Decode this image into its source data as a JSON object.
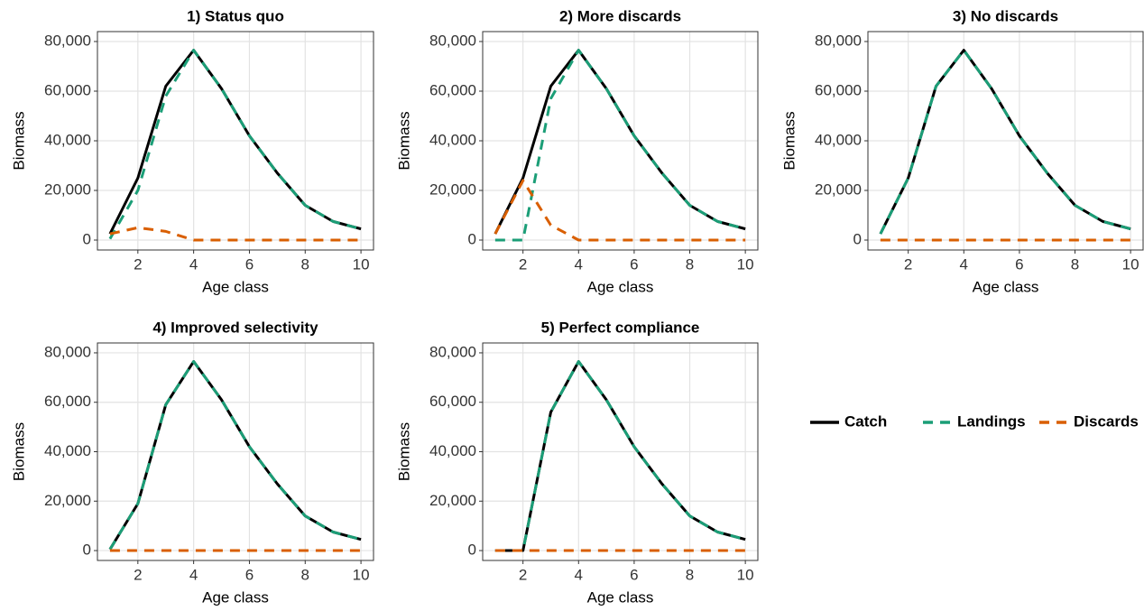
{
  "chart_data": [
    {
      "type": "line",
      "title": "1) Status quo",
      "xlabel": "Age class",
      "ylabel": "Biomass",
      "x": [
        1,
        2,
        3,
        4,
        5,
        6,
        7,
        8,
        9,
        10
      ],
      "xlim": [
        0.55,
        10.45
      ],
      "xticks": [
        2,
        4,
        6,
        8,
        10
      ],
      "ylim": [
        -4000,
        84000
      ],
      "yticks": [
        0,
        {
          "value": 20000,
          "label": "20,000"
        },
        {
          "value": 40000,
          "label": "40,000"
        },
        {
          "value": 60000,
          "label": "60,000"
        },
        {
          "value": 80000,
          "label": "80,000"
        }
      ],
      "grid": true,
      "series": [
        {
          "name": "Catch",
          "color": "#000000",
          "dashed": false,
          "values": [
            2500,
            25000,
            62000,
            76500,
            61000,
            42000,
            27000,
            14000,
            7500,
            4500
          ]
        },
        {
          "name": "Landings",
          "color": "#1b9e77",
          "dashed": true,
          "values": [
            500,
            20000,
            58000,
            76500,
            61000,
            42000,
            27000,
            14000,
            7500,
            4500
          ]
        },
        {
          "name": "Discards",
          "color": "#d95f02",
          "dashed": true,
          "values": [
            2500,
            5000,
            3500,
            0,
            0,
            0,
            0,
            0,
            0,
            0
          ]
        }
      ]
    },
    {
      "type": "line",
      "title": "2) More discards",
      "xlabel": "Age class",
      "ylabel": "Biomass",
      "x": [
        1,
        2,
        3,
        4,
        5,
        6,
        7,
        8,
        9,
        10
      ],
      "xlim": [
        0.55,
        10.45
      ],
      "xticks": [
        2,
        4,
        6,
        8,
        10
      ],
      "ylim": [
        -4000,
        84000
      ],
      "yticks": [
        0,
        {
          "value": 20000,
          "label": "20,000"
        },
        {
          "value": 40000,
          "label": "40,000"
        },
        {
          "value": 60000,
          "label": "60,000"
        },
        {
          "value": 80000,
          "label": "80,000"
        }
      ],
      "grid": true,
      "series": [
        {
          "name": "Catch",
          "color": "#000000",
          "dashed": false,
          "values": [
            2500,
            25000,
            62000,
            76500,
            61000,
            42000,
            27000,
            14000,
            7500,
            4500
          ]
        },
        {
          "name": "Landings",
          "color": "#1b9e77",
          "dashed": true,
          "values": [
            0,
            0,
            57000,
            76500,
            61000,
            42000,
            27000,
            14000,
            7500,
            4500
          ]
        },
        {
          "name": "Discards",
          "color": "#d95f02",
          "dashed": true,
          "values": [
            2500,
            24000,
            6000,
            0,
            0,
            0,
            0,
            0,
            0,
            0
          ]
        }
      ]
    },
    {
      "type": "line",
      "title": "3) No discards",
      "xlabel": "Age class",
      "ylabel": "Biomass",
      "x": [
        1,
        2,
        3,
        4,
        5,
        6,
        7,
        8,
        9,
        10
      ],
      "xlim": [
        0.55,
        10.45
      ],
      "xticks": [
        2,
        4,
        6,
        8,
        10
      ],
      "ylim": [
        -4000,
        84000
      ],
      "yticks": [
        0,
        {
          "value": 20000,
          "label": "20,000"
        },
        {
          "value": 40000,
          "label": "40,000"
        },
        {
          "value": 60000,
          "label": "60,000"
        },
        {
          "value": 80000,
          "label": "80,000"
        }
      ],
      "grid": true,
      "series": [
        {
          "name": "Catch",
          "color": "#000000",
          "dashed": false,
          "values": [
            2500,
            25000,
            62000,
            76500,
            61000,
            42000,
            27000,
            14000,
            7500,
            4500
          ]
        },
        {
          "name": "Landings",
          "color": "#1b9e77",
          "dashed": true,
          "values": [
            2500,
            25000,
            62000,
            76500,
            61000,
            42000,
            27000,
            14000,
            7500,
            4500
          ]
        },
        {
          "name": "Discards",
          "color": "#d95f02",
          "dashed": true,
          "values": [
            0,
            0,
            0,
            0,
            0,
            0,
            0,
            0,
            0,
            0
          ]
        }
      ]
    },
    {
      "type": "line",
      "title": "4) Improved selectivity",
      "xlabel": "Age class",
      "ylabel": "Biomass",
      "x": [
        1,
        2,
        3,
        4,
        5,
        6,
        7,
        8,
        9,
        10
      ],
      "xlim": [
        0.55,
        10.45
      ],
      "xticks": [
        2,
        4,
        6,
        8,
        10
      ],
      "ylim": [
        -4000,
        84000
      ],
      "yticks": [
        0,
        {
          "value": 20000,
          "label": "20,000"
        },
        {
          "value": 40000,
          "label": "40,000"
        },
        {
          "value": 60000,
          "label": "60,000"
        },
        {
          "value": 80000,
          "label": "80,000"
        }
      ],
      "grid": true,
      "series": [
        {
          "name": "Catch",
          "color": "#000000",
          "dashed": false,
          "values": [
            500,
            19000,
            59000,
            76500,
            61000,
            42000,
            27000,
            14000,
            7500,
            4500
          ]
        },
        {
          "name": "Landings",
          "color": "#1b9e77",
          "dashed": true,
          "values": [
            500,
            19000,
            59000,
            76500,
            61000,
            42000,
            27000,
            14000,
            7500,
            4500
          ]
        },
        {
          "name": "Discards",
          "color": "#d95f02",
          "dashed": true,
          "values": [
            0,
            0,
            0,
            0,
            0,
            0,
            0,
            0,
            0,
            0
          ]
        }
      ]
    },
    {
      "type": "line",
      "title": "5) Perfect compliance",
      "xlabel": "Age class",
      "ylabel": "Biomass",
      "x": [
        1,
        2,
        3,
        4,
        5,
        6,
        7,
        8,
        9,
        10
      ],
      "xlim": [
        0.55,
        10.45
      ],
      "xticks": [
        2,
        4,
        6,
        8,
        10
      ],
      "ylim": [
        -4000,
        84000
      ],
      "yticks": [
        0,
        {
          "value": 20000,
          "label": "20,000"
        },
        {
          "value": 40000,
          "label": "40,000"
        },
        {
          "value": 60000,
          "label": "60,000"
        },
        {
          "value": 80000,
          "label": "80,000"
        }
      ],
      "grid": true,
      "series": [
        {
          "name": "Catch",
          "color": "#000000",
          "dashed": false,
          "values": [
            0,
            0,
            56000,
            76500,
            61000,
            42000,
            27000,
            14000,
            7500,
            4500
          ]
        },
        {
          "name": "Landings",
          "color": "#1b9e77",
          "dashed": true,
          "values": [
            0,
            0,
            56000,
            76500,
            61000,
            42000,
            27000,
            14000,
            7500,
            4500
          ]
        },
        {
          "name": "Discards",
          "color": "#d95f02",
          "dashed": true,
          "values": [
            0,
            0,
            0,
            0,
            0,
            0,
            0,
            0,
            0,
            0
          ]
        }
      ]
    }
  ]
}
